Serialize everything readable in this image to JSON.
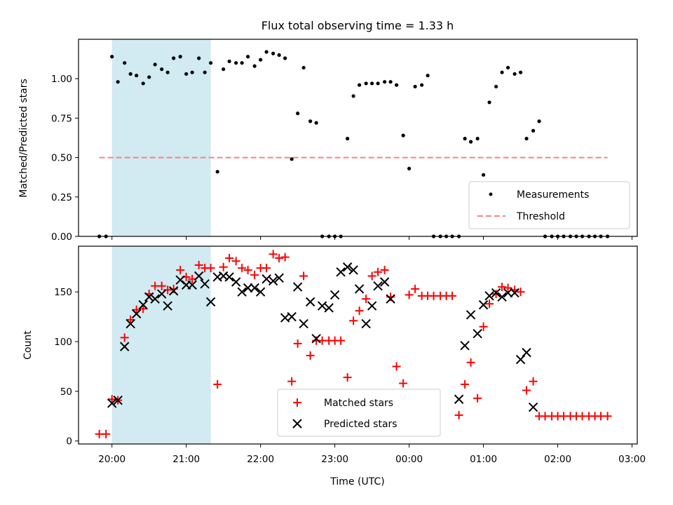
{
  "title": "Flux total observing time = 1.33 h",
  "xlabel": "Time (UTC)",
  "x_ticks": [
    "20:00",
    "21:00",
    "22:00",
    "23:00",
    "00:00",
    "01:00",
    "02:00",
    "03:00"
  ],
  "shaded_region_color": "#add8e6",
  "chart_data": [
    {
      "type": "scatter",
      "ylabel": "Matched/Predicted stars",
      "xlim_hours": [
        19.55,
        27.07
      ],
      "ylim": [
        0,
        1.25
      ],
      "y_ticks": [
        "0.00",
        "0.25",
        "0.50",
        "0.75",
        "1.00"
      ],
      "shaded_x_hours": [
        20.0,
        21.33
      ],
      "threshold": {
        "y": 0.5,
        "x_hours": [
          19.83,
          26.67
        ],
        "color": "#ff8080",
        "style": "dashed"
      },
      "legend": {
        "position": "lower-right",
        "items": [
          "Measurements",
          "Threshold"
        ]
      },
      "series": [
        {
          "name": "Measurements",
          "marker": "dot",
          "color": "#000000",
          "points": [
            [
              19.83,
              0.0
            ],
            [
              19.92,
              0.0
            ],
            [
              20.0,
              1.14
            ],
            [
              20.08,
              0.98
            ],
            [
              20.17,
              1.1
            ],
            [
              20.25,
              1.03
            ],
            [
              20.33,
              1.02
            ],
            [
              20.42,
              0.97
            ],
            [
              20.5,
              1.01
            ],
            [
              20.58,
              1.09
            ],
            [
              20.67,
              1.06
            ],
            [
              20.75,
              1.04
            ],
            [
              20.83,
              1.13
            ],
            [
              20.92,
              1.14
            ],
            [
              21.0,
              1.03
            ],
            [
              21.08,
              1.04
            ],
            [
              21.17,
              1.13
            ],
            [
              21.25,
              1.04
            ],
            [
              21.33,
              1.1
            ],
            [
              21.42,
              0.41
            ],
            [
              21.5,
              1.06
            ],
            [
              21.58,
              1.11
            ],
            [
              21.67,
              1.1
            ],
            [
              21.75,
              1.1
            ],
            [
              21.83,
              1.14
            ],
            [
              21.92,
              1.08
            ],
            [
              22.0,
              1.12
            ],
            [
              22.08,
              1.17
            ],
            [
              22.17,
              1.16
            ],
            [
              22.25,
              1.15
            ],
            [
              22.33,
              1.13
            ],
            [
              22.42,
              0.49
            ],
            [
              22.5,
              0.78
            ],
            [
              22.58,
              1.07
            ],
            [
              22.67,
              0.73
            ],
            [
              22.75,
              0.72
            ],
            [
              22.83,
              0.0
            ],
            [
              22.92,
              0.0
            ],
            [
              23.0,
              0.0
            ],
            [
              23.08,
              0.0
            ],
            [
              23.17,
              0.62
            ],
            [
              23.25,
              0.89
            ],
            [
              23.33,
              0.96
            ],
            [
              23.42,
              0.97
            ],
            [
              23.5,
              0.97
            ],
            [
              23.58,
              0.97
            ],
            [
              23.67,
              0.98
            ],
            [
              23.75,
              0.98
            ],
            [
              23.83,
              0.96
            ],
            [
              23.92,
              0.64
            ],
            [
              24.0,
              0.43
            ],
            [
              24.08,
              0.95
            ],
            [
              24.17,
              0.96
            ],
            [
              24.25,
              1.02
            ],
            [
              24.33,
              0.0
            ],
            [
              24.42,
              0.0
            ],
            [
              24.5,
              0.0
            ],
            [
              24.58,
              0.0
            ],
            [
              24.67,
              0.0
            ],
            [
              24.75,
              0.62
            ],
            [
              24.83,
              0.6
            ],
            [
              24.92,
              0.62
            ],
            [
              25.0,
              0.39
            ],
            [
              25.08,
              0.85
            ],
            [
              25.17,
              0.95
            ],
            [
              25.25,
              1.04
            ],
            [
              25.33,
              1.07
            ],
            [
              25.42,
              1.03
            ],
            [
              25.5,
              1.04
            ],
            [
              25.58,
              0.62
            ],
            [
              25.67,
              0.67
            ],
            [
              25.75,
              0.73
            ],
            [
              25.83,
              0.0
            ],
            [
              25.92,
              0.0
            ],
            [
              26.0,
              0.0
            ],
            [
              26.08,
              0.0
            ],
            [
              26.17,
              0.0
            ],
            [
              26.25,
              0.0
            ],
            [
              26.33,
              0.0
            ],
            [
              26.42,
              0.0
            ],
            [
              26.5,
              0.0
            ],
            [
              26.58,
              0.0
            ],
            [
              26.67,
              0.0
            ]
          ]
        }
      ]
    },
    {
      "type": "scatter",
      "ylabel": "Count",
      "xlabel": "Time (UTC)",
      "xlim_hours": [
        19.55,
        27.07
      ],
      "ylim": [
        -3,
        196
      ],
      "y_ticks": [
        "0",
        "50",
        "100",
        "150"
      ],
      "shaded_x_hours": [
        20.0,
        21.33
      ],
      "legend": {
        "position": "lower-center",
        "items": [
          "Matched stars",
          "Predicted stars"
        ]
      },
      "series": [
        {
          "name": "Matched stars",
          "marker": "plus",
          "color": "#ff0000",
          "points": [
            [
              19.83,
              7
            ],
            [
              19.92,
              7
            ],
            [
              20.0,
              42
            ],
            [
              20.08,
              41
            ],
            [
              20.17,
              104
            ],
            [
              20.25,
              122
            ],
            [
              20.33,
              132
            ],
            [
              20.42,
              133
            ],
            [
              20.5,
              148
            ],
            [
              20.58,
              156
            ],
            [
              20.67,
              156
            ],
            [
              20.75,
              152
            ],
            [
              20.83,
              153
            ],
            [
              20.92,
              172
            ],
            [
              21.0,
              165
            ],
            [
              21.08,
              163
            ],
            [
              21.17,
              177
            ],
            [
              21.25,
              174
            ],
            [
              21.33,
              174
            ],
            [
              21.42,
              57
            ],
            [
              21.5,
              175
            ],
            [
              21.58,
              184
            ],
            [
              21.67,
              181
            ],
            [
              21.75,
              174
            ],
            [
              21.83,
              172
            ],
            [
              21.92,
              167
            ],
            [
              22.0,
              174
            ],
            [
              22.08,
              174
            ],
            [
              22.17,
              188
            ],
            [
              22.25,
              184
            ],
            [
              22.33,
              185
            ],
            [
              22.42,
              60
            ],
            [
              22.5,
              98
            ],
            [
              22.58,
              166
            ],
            [
              22.67,
              86
            ],
            [
              22.75,
              101
            ],
            [
              22.83,
              101
            ],
            [
              22.92,
              101
            ],
            [
              23.0,
              101
            ],
            [
              23.08,
              101
            ],
            [
              23.17,
              64
            ],
            [
              23.25,
              121
            ],
            [
              23.33,
              131
            ],
            [
              23.42,
              143
            ],
            [
              23.5,
              166
            ],
            [
              23.58,
              170
            ],
            [
              23.67,
              172
            ],
            [
              23.75,
              145
            ],
            [
              23.83,
              75
            ],
            [
              23.92,
              58
            ],
            [
              24.0,
              147
            ],
            [
              24.08,
              153
            ],
            [
              24.17,
              146
            ],
            [
              24.25,
              146
            ],
            [
              24.33,
              146
            ],
            [
              24.42,
              146
            ],
            [
              24.5,
              146
            ],
            [
              24.58,
              146
            ],
            [
              24.67,
              26
            ],
            [
              24.75,
              57
            ],
            [
              24.83,
              79
            ],
            [
              24.92,
              43
            ],
            [
              25.0,
              115
            ],
            [
              25.08,
              138
            ],
            [
              25.17,
              148
            ],
            [
              25.25,
              155
            ],
            [
              25.33,
              154
            ],
            [
              25.42,
              152
            ],
            [
              25.5,
              150
            ],
            [
              25.58,
              51
            ],
            [
              25.67,
              60
            ],
            [
              25.75,
              25
            ],
            [
              25.83,
              25
            ],
            [
              25.92,
              25
            ],
            [
              26.0,
              25
            ],
            [
              26.08,
              25
            ],
            [
              26.17,
              25
            ],
            [
              26.25,
              25
            ],
            [
              26.33,
              25
            ],
            [
              26.42,
              25
            ],
            [
              26.5,
              25
            ],
            [
              26.58,
              25
            ],
            [
              26.67,
              25
            ]
          ]
        },
        {
          "name": "Predicted stars",
          "marker": "x",
          "color": "#000000",
          "points": [
            [
              20.0,
              38
            ],
            [
              20.08,
              41
            ],
            [
              20.17,
              95
            ],
            [
              20.25,
              118
            ],
            [
              20.33,
              128
            ],
            [
              20.42,
              137
            ],
            [
              20.5,
              145
            ],
            [
              20.58,
              143
            ],
            [
              20.67,
              148
            ],
            [
              20.75,
              136
            ],
            [
              20.83,
              151
            ],
            [
              20.92,
              162
            ],
            [
              21.0,
              157
            ],
            [
              21.08,
              157
            ],
            [
              21.17,
              166
            ],
            [
              21.25,
              158
            ],
            [
              21.33,
              140
            ],
            [
              21.42,
              165
            ],
            [
              21.5,
              166
            ],
            [
              21.58,
              165
            ],
            [
              21.67,
              160
            ],
            [
              21.75,
              150
            ],
            [
              21.83,
              154
            ],
            [
              21.92,
              154
            ],
            [
              22.0,
              150
            ],
            [
              22.08,
              163
            ],
            [
              22.17,
              161
            ],
            [
              22.25,
              164
            ],
            [
              22.33,
              124
            ],
            [
              22.42,
              125
            ],
            [
              22.5,
              155
            ],
            [
              22.58,
              118
            ],
            [
              22.67,
              140
            ],
            [
              22.75,
              103
            ],
            [
              22.83,
              136
            ],
            [
              22.92,
              134
            ],
            [
              23.0,
              147
            ],
            [
              23.08,
              170
            ],
            [
              23.17,
              175
            ],
            [
              23.25,
              172
            ],
            [
              23.33,
              153
            ],
            [
              23.42,
              118
            ],
            [
              23.5,
              136
            ],
            [
              23.58,
              156
            ],
            [
              23.67,
              160
            ],
            [
              23.75,
              143
            ],
            [
              24.67,
              42
            ],
            [
              24.75,
              96
            ],
            [
              24.83,
              127
            ],
            [
              24.92,
              108
            ],
            [
              25.0,
              137
            ],
            [
              25.08,
              146
            ],
            [
              25.17,
              149
            ],
            [
              25.25,
              145
            ],
            [
              25.33,
              149
            ],
            [
              25.42,
              149
            ],
            [
              25.5,
              82
            ],
            [
              25.58,
              89
            ],
            [
              25.67,
              34
            ]
          ]
        }
      ]
    }
  ]
}
